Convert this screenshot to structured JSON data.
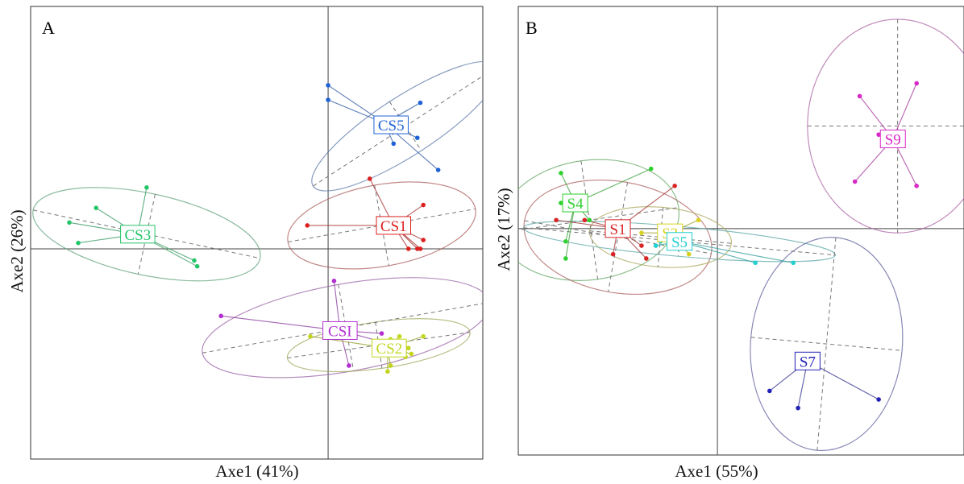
{
  "chart_data": [
    {
      "type": "scatter",
      "panel_label": "A",
      "xlabel": "Axe1 (41%)",
      "ylabel": "Axe2 (26%)",
      "xlim": [
        -1.0,
        0.52
      ],
      "ylim": [
        -0.72,
        0.83
      ],
      "grid": false,
      "groups": [
        {
          "name": "CS5",
          "color": "#1f62d6",
          "label_offset": [
            8,
            2
          ],
          "center": [
            0.19,
            0.43
          ],
          "points": [
            [
              0.0,
              0.56
            ],
            [
              0.0,
              0.51
            ],
            [
              0.31,
              0.5
            ],
            [
              0.3,
              0.38
            ],
            [
              0.22,
              0.36
            ],
            [
              0.37,
              0.27
            ]
          ],
          "ellipse": {
            "cx": 0.26,
            "cy": 0.42,
            "rx": 0.37,
            "ry": 0.1,
            "angle": 33
          }
        },
        {
          "name": "CS1",
          "color": "#dc1f1f",
          "label_offset": [
            0,
            0
          ],
          "center": [
            0.22,
            0.08
          ],
          "points": [
            [
              0.14,
              0.24
            ],
            [
              0.32,
              0.15
            ],
            [
              -0.07,
              0.08
            ],
            [
              0.32,
              0.03
            ],
            [
              0.31,
              0.0
            ],
            [
              0.3,
              0.0
            ],
            [
              0.27,
              0.0
            ]
          ],
          "ellipse": {
            "cx": 0.18,
            "cy": 0.08,
            "rx": 0.32,
            "ry": 0.14,
            "angle": 10
          }
        },
        {
          "name": "CS3",
          "color": "#25c56a",
          "label_offset": [
            0,
            0
          ],
          "center": [
            -0.64,
            0.05
          ],
          "points": [
            [
              -0.61,
              0.21
            ],
            [
              -0.78,
              0.14
            ],
            [
              -0.87,
              0.09
            ],
            [
              -0.84,
              0.02
            ],
            [
              -0.45,
              -0.04
            ],
            [
              -0.44,
              -0.06
            ]
          ],
          "ellipse": {
            "cx": -0.61,
            "cy": 0.05,
            "rx": 0.39,
            "ry": 0.14,
            "angle": -12
          }
        },
        {
          "name": "CSI",
          "color": "#b22fd2",
          "label_offset": [
            0,
            0
          ],
          "center": [
            0.04,
            -0.28
          ],
          "points": [
            [
              0.02,
              -0.11
            ],
            [
              -0.36,
              -0.23
            ],
            [
              0.18,
              -0.29
            ],
            [
              0.07,
              -0.4
            ],
            [
              0.26,
              -0.34
            ]
          ],
          "ellipse": {
            "cx": 0.06,
            "cy": -0.27,
            "rx": 0.49,
            "ry": 0.15,
            "angle": 10
          }
        },
        {
          "name": "CS2",
          "color": "#c3d61e",
          "label_offset": [
            2,
            0
          ],
          "center": [
            0.2,
            -0.34
          ],
          "points": [
            [
              -0.06,
              -0.3
            ],
            [
              0.21,
              -0.31
            ],
            [
              0.24,
              -0.3
            ],
            [
              0.32,
              -0.3
            ],
            [
              0.27,
              -0.34
            ],
            [
              0.28,
              -0.36
            ],
            [
              0.26,
              -0.37
            ],
            [
              0.21,
              -0.4
            ],
            [
              0.2,
              -0.42
            ]
          ],
          "ellipse": {
            "cx": 0.17,
            "cy": -0.33,
            "rx": 0.31,
            "ry": 0.08,
            "angle": 8
          }
        }
      ]
    },
    {
      "type": "scatter",
      "panel_label": "B",
      "xlabel": "Axe1 (55%)",
      "ylabel": "Axe2 (17%)",
      "xlim": [
        -0.42,
        0.52
      ],
      "ylim": [
        -0.53,
        0.52
      ],
      "grid": false,
      "groups": [
        {
          "name": "S9",
          "color": "#d829c7",
          "label_offset": [
            0,
            0
          ],
          "center": [
            0.37,
            0.21
          ],
          "points": [
            [
              0.42,
              0.34
            ],
            [
              0.3,
              0.31
            ],
            [
              0.34,
              0.22
            ],
            [
              0.29,
              0.11
            ],
            [
              0.42,
              0.1
            ]
          ],
          "ellipse": {
            "cx": 0.38,
            "cy": 0.24,
            "rx": 0.19,
            "ry": 0.25,
            "angle": 0
          }
        },
        {
          "name": "S4",
          "color": "#2ed12e",
          "label_offset": [
            0,
            0
          ],
          "center": [
            -0.3,
            0.06
          ],
          "points": [
            [
              -0.33,
              0.13
            ],
            [
              -0.33,
              0.06
            ],
            [
              -0.27,
              0.02
            ],
            [
              -0.14,
              0.14
            ],
            [
              -0.32,
              -0.03
            ],
            [
              -0.32,
              -0.07
            ]
          ],
          "ellipse": {
            "cx": -0.27,
            "cy": 0.02,
            "rx": 0.19,
            "ry": 0.14,
            "angle": 8
          }
        },
        {
          "name": "S1",
          "color": "#d82424",
          "label_offset": [
            0,
            0
          ],
          "center": [
            -0.21,
            0.0
          ],
          "points": [
            [
              -0.09,
              0.1
            ],
            [
              -0.34,
              0.02
            ],
            [
              -0.16,
              -0.04
            ],
            [
              -0.22,
              -0.06
            ],
            [
              -0.15,
              -0.07
            ],
            [
              -0.28,
              0.02
            ]
          ],
          "ellipse": {
            "cx": -0.21,
            "cy": -0.02,
            "rx": 0.2,
            "ry": 0.13,
            "angle": -10
          }
        },
        {
          "name": "S3",
          "color": "#d7d21f",
          "label_offset": [
            0,
            0
          ],
          "center": [
            -0.1,
            -0.01
          ],
          "points": [
            [
              -0.04,
              0.02
            ],
            [
              -0.16,
              -0.01
            ],
            [
              -0.06,
              -0.06
            ],
            [
              -0.12,
              -0.03
            ],
            [
              -0.09,
              -0.03
            ]
          ],
          "ellipse": {
            "cx": -0.12,
            "cy": -0.02,
            "rx": 0.15,
            "ry": 0.07,
            "angle": -5
          }
        },
        {
          "name": "S5",
          "color": "#23d0d0",
          "label_offset": [
            0,
            0
          ],
          "center": [
            -0.08,
            -0.03
          ],
          "points": [
            [
              0.08,
              -0.08
            ],
            [
              -0.13,
              -0.04
            ],
            [
              -0.12,
              -0.03
            ],
            [
              -0.11,
              -0.02
            ],
            [
              0.16,
              -0.08
            ]
          ],
          "ellipse": {
            "cx": -0.08,
            "cy": -0.03,
            "rx": 0.33,
            "ry": 0.035,
            "angle": -5
          }
        },
        {
          "name": "S7",
          "color": "#2222b8",
          "label_offset": [
            0,
            0
          ],
          "center": [
            0.19,
            -0.31
          ],
          "points": [
            [
              0.17,
              -0.31
            ],
            [
              0.21,
              -0.31
            ],
            [
              0.11,
              -0.38
            ],
            [
              0.34,
              -0.4
            ],
            [
              0.17,
              -0.42
            ]
          ],
          "ellipse": {
            "cx": 0.23,
            "cy": -0.27,
            "rx": 0.16,
            "ry": 0.25,
            "angle": -5
          }
        }
      ]
    }
  ]
}
